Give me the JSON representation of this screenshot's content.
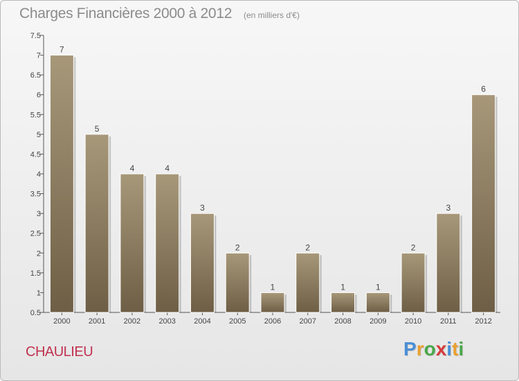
{
  "header": {
    "title": "Charges Financières 2000 à 2012",
    "subtitle": "(en milliers d'€)"
  },
  "footer": {
    "commune": "CHAULIEU",
    "logo_letters": [
      "P",
      "r",
      "o",
      "x",
      "i",
      "t",
      "i"
    ]
  },
  "colors": {
    "bar_top": "#a8987a",
    "bar_bottom": "#6e5e45",
    "axis": "#555555",
    "label": "#444444",
    "commune": "#c0314f",
    "logo": [
      "#4a8fd6",
      "#e8a030",
      "#4aa84a",
      "#d63a3a",
      "#4a8fd6",
      "#e8a030",
      "#4aa84a"
    ]
  },
  "chart_data": {
    "type": "bar",
    "title": "Charges Financières 2000 à 2012",
    "subtitle": "(en milliers d'€)",
    "categories": [
      "2000",
      "2001",
      "2002",
      "2003",
      "2004",
      "2005",
      "2006",
      "2007",
      "2008",
      "2009",
      "2010",
      "2011",
      "2012"
    ],
    "values": [
      7,
      5,
      4,
      4,
      3,
      2,
      1,
      2,
      1,
      1,
      2,
      3,
      6
    ],
    "value_labels": [
      "7",
      "5",
      "4",
      "4",
      "3",
      "2",
      "1",
      "2",
      "1",
      "1",
      "2",
      "3",
      "6"
    ],
    "ylim": [
      0.5,
      7.5
    ],
    "yticks": [
      "0.5",
      "1",
      "1.5",
      "2",
      "2.5",
      "3",
      "3.5",
      "4",
      "4.5",
      "5",
      "5.5",
      "6",
      "6.5",
      "7",
      "7.5"
    ],
    "grid": false,
    "legend": "none"
  }
}
